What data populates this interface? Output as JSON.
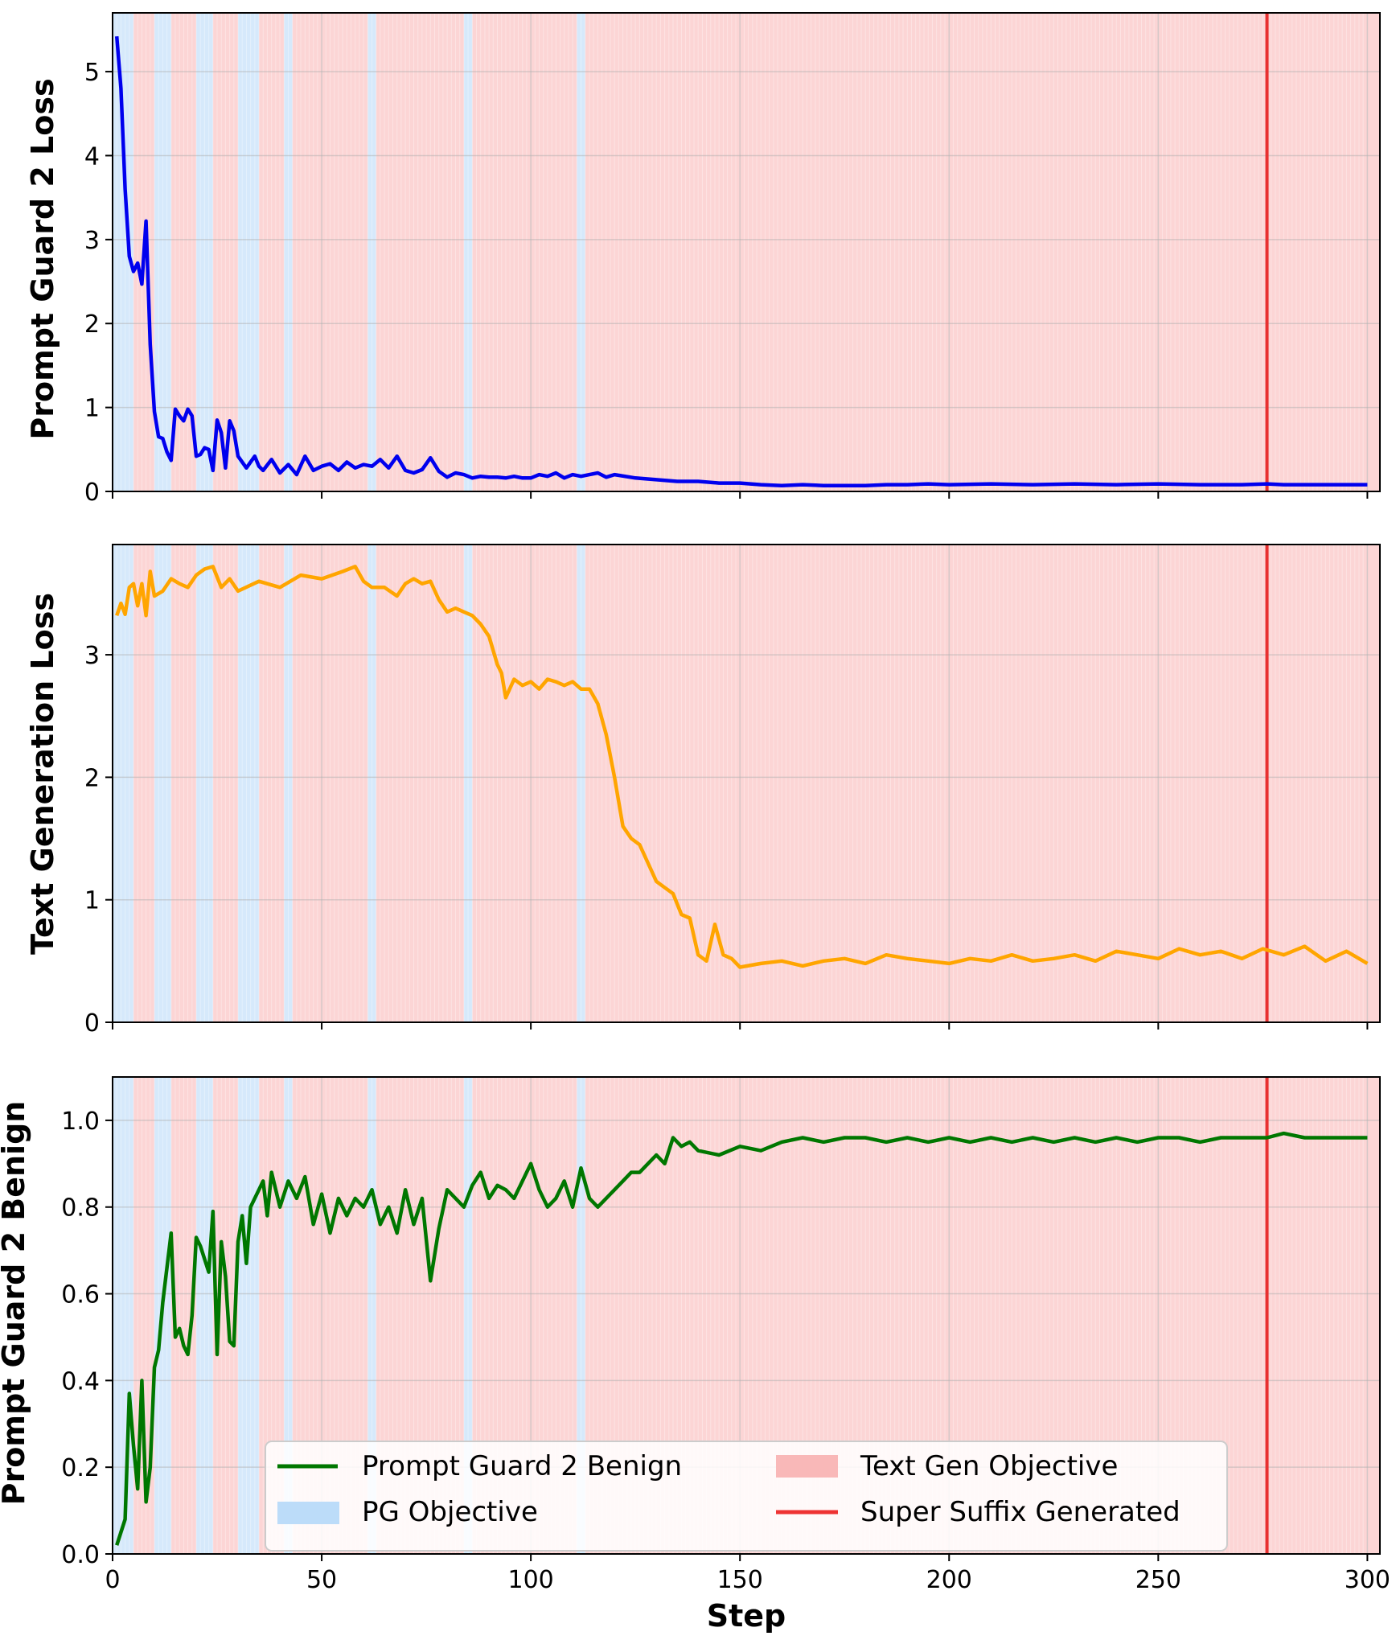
{
  "chart_data": [
    {
      "type": "line",
      "ylabel": "Prompt Guard 2 Loss",
      "ylim": [
        0,
        5.7
      ],
      "yticks": [
        0,
        1,
        2,
        3,
        4,
        5
      ],
      "ytick_labels": [
        "0",
        "1",
        "2",
        "3",
        "4",
        "5"
      ],
      "xlim": [
        0,
        303
      ],
      "xticks": [
        0,
        50,
        100,
        150,
        200,
        250,
        300
      ],
      "grid": true,
      "series": [
        {
          "name": "Prompt Guard 2 Loss",
          "color": "#0000ee",
          "x": [
            1,
            2,
            3,
            4,
            5,
            6,
            7,
            8,
            9,
            10,
            11,
            12,
            13,
            14,
            15,
            16,
            17,
            18,
            19,
            20,
            21,
            22,
            23,
            24,
            25,
            26,
            27,
            28,
            29,
            30,
            32,
            34,
            35,
            36,
            38,
            40,
            42,
            44,
            46,
            48,
            50,
            52,
            54,
            56,
            58,
            60,
            62,
            64,
            66,
            68,
            70,
            72,
            74,
            76,
            78,
            80,
            82,
            84,
            86,
            88,
            90,
            92,
            94,
            96,
            98,
            100,
            102,
            104,
            106,
            108,
            110,
            112,
            114,
            116,
            118,
            120,
            125,
            130,
            135,
            140,
            145,
            150,
            155,
            160,
            165,
            170,
            175,
            180,
            185,
            190,
            195,
            200,
            210,
            220,
            230,
            240,
            250,
            260,
            270,
            276,
            280,
            290,
            300
          ],
          "values": [
            5.42,
            4.8,
            3.6,
            2.8,
            2.62,
            2.72,
            2.47,
            3.22,
            1.75,
            0.95,
            0.65,
            0.63,
            0.47,
            0.37,
            0.98,
            0.9,
            0.84,
            0.98,
            0.9,
            0.42,
            0.44,
            0.52,
            0.5,
            0.25,
            0.85,
            0.7,
            0.28,
            0.84,
            0.72,
            0.42,
            0.28,
            0.42,
            0.3,
            0.25,
            0.38,
            0.22,
            0.32,
            0.2,
            0.42,
            0.25,
            0.3,
            0.33,
            0.25,
            0.35,
            0.28,
            0.32,
            0.3,
            0.38,
            0.28,
            0.42,
            0.25,
            0.22,
            0.26,
            0.4,
            0.24,
            0.17,
            0.22,
            0.2,
            0.16,
            0.18,
            0.17,
            0.17,
            0.16,
            0.18,
            0.16,
            0.16,
            0.2,
            0.18,
            0.22,
            0.16,
            0.2,
            0.18,
            0.2,
            0.22,
            0.17,
            0.2,
            0.16,
            0.14,
            0.12,
            0.12,
            0.1,
            0.1,
            0.08,
            0.07,
            0.08,
            0.07,
            0.07,
            0.07,
            0.08,
            0.08,
            0.09,
            0.08,
            0.09,
            0.08,
            0.09,
            0.08,
            0.09,
            0.08,
            0.08,
            0.09,
            0.08,
            0.08,
            0.08
          ]
        }
      ],
      "objective_phases": [
        [
          0,
          5,
          "pg"
        ],
        [
          10,
          14,
          "pg"
        ],
        [
          20,
          24,
          "pg"
        ],
        [
          30,
          35,
          "pg"
        ],
        [
          41,
          43,
          "pg"
        ],
        [
          61,
          63,
          "pg"
        ],
        [
          84,
          86,
          "pg"
        ],
        [
          111,
          113,
          "pg"
        ]
      ],
      "vline": 276
    },
    {
      "type": "line",
      "ylabel": "Text Generation Loss",
      "ylim": [
        0,
        3.9
      ],
      "yticks": [
        0,
        1,
        2,
        3
      ],
      "ytick_labels": [
        "0",
        "1",
        "2",
        "3"
      ],
      "xlim": [
        0,
        303
      ],
      "xticks": [
        0,
        50,
        100,
        150,
        200,
        250,
        300
      ],
      "grid": true,
      "series": [
        {
          "name": "Text Generation Loss",
          "color": "#ffa500",
          "x": [
            1,
            2,
            3,
            4,
            5,
            6,
            7,
            8,
            9,
            10,
            12,
            14,
            16,
            18,
            20,
            22,
            24,
            26,
            28,
            30,
            35,
            40,
            45,
            50,
            55,
            58,
            60,
            62,
            65,
            68,
            70,
            72,
            74,
            76,
            78,
            80,
            82,
            84,
            86,
            88,
            90,
            92,
            93,
            94,
            96,
            98,
            100,
            102,
            104,
            106,
            108,
            110,
            112,
            114,
            116,
            118,
            120,
            122,
            124,
            126,
            128,
            130,
            132,
            134,
            136,
            138,
            140,
            142,
            144,
            146,
            148,
            150,
            155,
            160,
            165,
            170,
            175,
            180,
            185,
            190,
            195,
            200,
            205,
            210,
            215,
            220,
            225,
            230,
            235,
            240,
            245,
            250,
            255,
            260,
            265,
            270,
            275,
            280,
            285,
            290,
            295,
            300
          ],
          "values": [
            3.32,
            3.42,
            3.33,
            3.55,
            3.58,
            3.4,
            3.58,
            3.32,
            3.68,
            3.48,
            3.52,
            3.62,
            3.58,
            3.55,
            3.65,
            3.7,
            3.72,
            3.55,
            3.62,
            3.52,
            3.6,
            3.55,
            3.65,
            3.62,
            3.68,
            3.72,
            3.6,
            3.55,
            3.55,
            3.48,
            3.58,
            3.62,
            3.58,
            3.6,
            3.45,
            3.35,
            3.38,
            3.35,
            3.32,
            3.25,
            3.15,
            2.92,
            2.85,
            2.65,
            2.8,
            2.75,
            2.78,
            2.72,
            2.8,
            2.78,
            2.75,
            2.78,
            2.72,
            2.72,
            2.6,
            2.35,
            2.0,
            1.6,
            1.5,
            1.45,
            1.3,
            1.15,
            1.1,
            1.05,
            0.88,
            0.85,
            0.55,
            0.5,
            0.8,
            0.55,
            0.52,
            0.45,
            0.48,
            0.5,
            0.46,
            0.5,
            0.52,
            0.48,
            0.55,
            0.52,
            0.5,
            0.48,
            0.52,
            0.5,
            0.55,
            0.5,
            0.52,
            0.55,
            0.5,
            0.58,
            0.55,
            0.52,
            0.6,
            0.55,
            0.58,
            0.52,
            0.6,
            0.55,
            0.62,
            0.5,
            0.58,
            0.48
          ]
        }
      ],
      "objective_phases": [
        [
          0,
          5,
          "pg"
        ],
        [
          10,
          14,
          "pg"
        ],
        [
          20,
          24,
          "pg"
        ],
        [
          30,
          35,
          "pg"
        ],
        [
          41,
          43,
          "pg"
        ],
        [
          61,
          63,
          "pg"
        ],
        [
          84,
          86,
          "pg"
        ],
        [
          111,
          113,
          "pg"
        ]
      ],
      "vline": 276
    },
    {
      "type": "line",
      "ylabel": "Prompt Guard 2 Benign",
      "xlabel": "Step",
      "ylim": [
        0,
        1.1
      ],
      "yticks": [
        0.0,
        0.2,
        0.4,
        0.6,
        0.8,
        1.0
      ],
      "ytick_labels": [
        "0.0",
        "0.2",
        "0.4",
        "0.6",
        "0.8",
        "1.0"
      ],
      "xlim": [
        0,
        303
      ],
      "xticks": [
        0,
        50,
        100,
        150,
        200,
        250,
        300
      ],
      "xtick_labels": [
        "0",
        "50",
        "100",
        "150",
        "200",
        "250",
        "300"
      ],
      "grid": true,
      "series": [
        {
          "name": "Prompt Guard 2 Benign",
          "color": "#007700",
          "x": [
            1,
            2,
            3,
            4,
            5,
            6,
            7,
            8,
            9,
            10,
            11,
            12,
            13,
            14,
            15,
            16,
            17,
            18,
            19,
            20,
            21,
            22,
            23,
            24,
            25,
            26,
            27,
            28,
            29,
            30,
            31,
            32,
            33,
            34,
            35,
            36,
            37,
            38,
            40,
            42,
            44,
            46,
            48,
            50,
            52,
            54,
            56,
            58,
            60,
            62,
            64,
            66,
            68,
            70,
            72,
            74,
            76,
            78,
            80,
            82,
            84,
            86,
            88,
            90,
            92,
            94,
            96,
            98,
            100,
            102,
            104,
            106,
            108,
            110,
            112,
            114,
            116,
            118,
            120,
            122,
            124,
            126,
            128,
            130,
            132,
            134,
            136,
            138,
            140,
            145,
            150,
            155,
            160,
            165,
            170,
            175,
            180,
            185,
            190,
            195,
            200,
            205,
            210,
            215,
            220,
            225,
            230,
            235,
            240,
            245,
            250,
            255,
            260,
            265,
            270,
            276,
            280,
            285,
            290,
            295,
            300
          ],
          "values": [
            0.02,
            0.05,
            0.08,
            0.37,
            0.25,
            0.15,
            0.4,
            0.12,
            0.2,
            0.43,
            0.47,
            0.58,
            0.66,
            0.74,
            0.5,
            0.52,
            0.48,
            0.46,
            0.55,
            0.73,
            0.71,
            0.68,
            0.65,
            0.79,
            0.46,
            0.72,
            0.64,
            0.49,
            0.48,
            0.72,
            0.78,
            0.67,
            0.8,
            0.82,
            0.84,
            0.86,
            0.78,
            0.88,
            0.8,
            0.86,
            0.82,
            0.87,
            0.76,
            0.83,
            0.74,
            0.82,
            0.78,
            0.82,
            0.8,
            0.84,
            0.76,
            0.8,
            0.74,
            0.84,
            0.76,
            0.82,
            0.63,
            0.75,
            0.84,
            0.82,
            0.8,
            0.85,
            0.88,
            0.82,
            0.85,
            0.84,
            0.82,
            0.86,
            0.9,
            0.84,
            0.8,
            0.82,
            0.86,
            0.8,
            0.89,
            0.82,
            0.8,
            0.82,
            0.84,
            0.86,
            0.88,
            0.88,
            0.9,
            0.92,
            0.9,
            0.96,
            0.94,
            0.95,
            0.93,
            0.92,
            0.94,
            0.93,
            0.95,
            0.96,
            0.95,
            0.96,
            0.96,
            0.95,
            0.96,
            0.95,
            0.96,
            0.95,
            0.96,
            0.95,
            0.96,
            0.95,
            0.96,
            0.95,
            0.96,
            0.95,
            0.96,
            0.96,
            0.95,
            0.96,
            0.96,
            0.96,
            0.97,
            0.96,
            0.96,
            0.96,
            0.96
          ]
        }
      ],
      "objective_phases": [
        [
          0,
          5,
          "pg"
        ],
        [
          10,
          14,
          "pg"
        ],
        [
          20,
          24,
          "pg"
        ],
        [
          30,
          35,
          "pg"
        ],
        [
          41,
          43,
          "pg"
        ],
        [
          61,
          63,
          "pg"
        ],
        [
          84,
          86,
          "pg"
        ],
        [
          111,
          113,
          "pg"
        ]
      ],
      "vline": 276,
      "legend": {
        "placement": "bottom-center",
        "entries": [
          {
            "label": "Prompt Guard 2 Benign",
            "kind": "line",
            "color": "#007700"
          },
          {
            "label": "Text Gen Objective",
            "kind": "patch",
            "color": "#f9b8b8"
          },
          {
            "label": "PG Objective",
            "kind": "patch",
            "color": "#bcdcf9"
          },
          {
            "label": "Super Suffix Generated",
            "kind": "line",
            "color": "#ee3333"
          }
        ]
      }
    }
  ],
  "colors": {
    "pg_shade": "#d6e9fb",
    "textgen_shade": "#fcd5d5",
    "vline": "#e83030"
  }
}
